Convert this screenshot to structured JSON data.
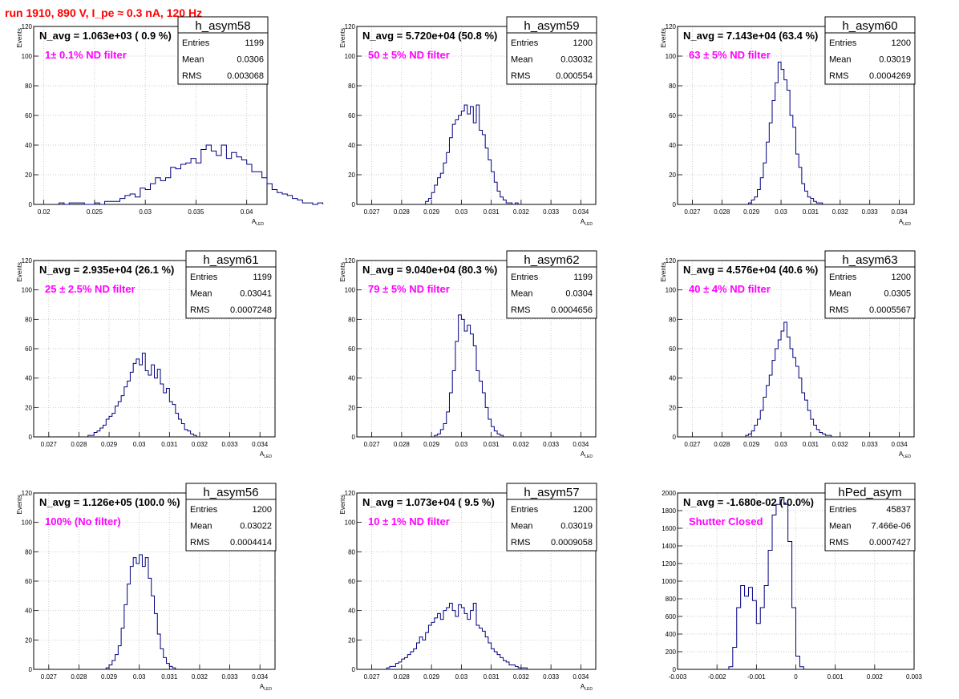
{
  "page_title": "run 1910,   890 V, I_pe ≈ 0.3 nA, 120 Hz",
  "colors": {
    "title": "#ff0000",
    "annotation": "#ff00ff",
    "hist": "#000080",
    "grid": "#d0d0d0"
  },
  "chart_data": [
    {
      "type": "histogram",
      "name": "h_asym58",
      "navg": "N_avg = 1.063e+03 ( 0.9 %)",
      "note": "1± 0.1% ND filter",
      "stats": [
        [
          "Entries",
          "1199"
        ],
        [
          "Mean",
          "0.0306"
        ],
        [
          "RMS",
          "0.003068"
        ]
      ],
      "xlabel": "A",
      "xlabel_sub": "LED",
      "ylabel": "Events",
      "xlim": [
        0.019,
        0.042
      ],
      "ylim": [
        0,
        120
      ],
      "xticks": [
        0.02,
        0.025,
        0.03,
        0.035,
        0.04
      ],
      "xtick_labels": [
        "0.02",
        "0.025",
        "0.03",
        "0.035",
        "0.04"
      ],
      "yticks": [
        0,
        20,
        40,
        60,
        80,
        100,
        120
      ],
      "ytick_labels": [
        "0",
        "20",
        "40",
        "60",
        "80",
        "100",
        "120"
      ],
      "bins": {
        "start": 0.0215,
        "width": 0.0005,
        "counts": [
          1,
          0,
          1,
          1,
          1,
          0,
          0,
          1,
          0,
          2,
          2,
          2,
          4,
          6,
          7,
          5,
          11,
          10,
          14,
          18,
          16,
          18,
          25,
          24,
          27,
          28,
          31,
          28,
          37,
          40,
          36,
          33,
          40,
          31,
          35,
          32,
          30,
          27,
          22,
          22,
          18,
          14,
          10,
          8,
          7,
          6,
          4,
          3,
          1,
          1,
          0,
          1
        ]
      }
    },
    {
      "type": "histogram",
      "name": "h_asym59",
      "navg": "N_avg = 5.720e+04 (50.8 %)",
      "note": "50 ± 5% ND filter",
      "stats": [
        [
          "Entries",
          "1200"
        ],
        [
          "Mean",
          "0.03032"
        ],
        [
          "RMS",
          "0.000554"
        ]
      ],
      "xlabel": "A",
      "xlabel_sub": "LED",
      "ylabel": "Events",
      "xlim": [
        0.0265,
        0.0345
      ],
      "ylim": [
        0,
        120
      ],
      "xticks": [
        0.027,
        0.028,
        0.029,
        0.03,
        0.031,
        0.032,
        0.033,
        0.034
      ],
      "xtick_labels": [
        "0.027",
        "0.028",
        "0.029",
        "0.03",
        "0.031",
        "0.032",
        "0.033",
        "0.034"
      ],
      "yticks": [
        0,
        20,
        40,
        60,
        80,
        100,
        120
      ],
      "ytick_labels": [
        "0",
        "20",
        "40",
        "60",
        "80",
        "100",
        "120"
      ],
      "bins": {
        "start": 0.0288,
        "width": 0.0001,
        "counts": [
          2,
          4,
          8,
          13,
          18,
          21,
          28,
          35,
          45,
          54,
          57,
          60,
          63,
          67,
          61,
          66,
          55,
          67,
          50,
          47,
          38,
          30,
          22,
          15,
          9,
          5,
          3,
          1,
          1,
          0,
          1
        ]
      }
    },
    {
      "type": "histogram",
      "name": "h_asym60",
      "navg": "N_avg = 7.143e+04 (63.4 %)",
      "note": "63 ± 5% ND filter",
      "stats": [
        [
          "Entries",
          "1200"
        ],
        [
          "Mean",
          "0.03019"
        ],
        [
          "RMS",
          "0.0004269"
        ]
      ],
      "xlabel": "A",
      "xlabel_sub": "LED",
      "ylabel": "Events",
      "xlim": [
        0.0265,
        0.0345
      ],
      "ylim": [
        0,
        120
      ],
      "xticks": [
        0.027,
        0.028,
        0.029,
        0.03,
        0.031,
        0.032,
        0.033,
        0.034
      ],
      "xtick_labels": [
        "0.027",
        "0.028",
        "0.029",
        "0.03",
        "0.031",
        "0.032",
        "0.033",
        "0.034"
      ],
      "yticks": [
        0,
        20,
        40,
        60,
        80,
        100,
        120
      ],
      "ytick_labels": [
        "0",
        "20",
        "40",
        "60",
        "80",
        "100",
        "120"
      ],
      "bins": {
        "start": 0.0289,
        "width": 0.0001,
        "counts": [
          1,
          3,
          5,
          10,
          18,
          28,
          42,
          55,
          70,
          82,
          96,
          91,
          84,
          77,
          60,
          52,
          34,
          25,
          14,
          9,
          5,
          4,
          2,
          1,
          1
        ]
      }
    },
    {
      "type": "histogram",
      "name": "h_asym61",
      "navg": "N_avg = 2.935e+04 (26.1 %)",
      "note": "25 ± 2.5% ND filter",
      "stats": [
        [
          "Entries",
          "1199"
        ],
        [
          "Mean",
          "0.03041"
        ],
        [
          "RMS",
          "0.0007248"
        ]
      ],
      "xlabel": "A",
      "xlabel_sub": "LED",
      "ylabel": "Events",
      "xlim": [
        0.0265,
        0.0345
      ],
      "ylim": [
        0,
        120
      ],
      "xticks": [
        0.027,
        0.028,
        0.029,
        0.03,
        0.031,
        0.032,
        0.033,
        0.034
      ],
      "xtick_labels": [
        "0.027",
        "0.028",
        "0.029",
        "0.03",
        "0.031",
        "0.032",
        "0.033",
        "0.034"
      ],
      "yticks": [
        0,
        20,
        40,
        60,
        80,
        100,
        120
      ],
      "ytick_labels": [
        "0",
        "20",
        "40",
        "60",
        "80",
        "100",
        "120"
      ],
      "bins": {
        "start": 0.0283,
        "width": 0.0001,
        "counts": [
          1,
          1,
          3,
          4,
          6,
          8,
          12,
          14,
          16,
          21,
          24,
          28,
          34,
          38,
          44,
          50,
          53,
          49,
          57,
          45,
          42,
          49,
          40,
          46,
          36,
          30,
          33,
          24,
          22,
          16,
          12,
          9,
          5,
          4,
          2,
          1
        ]
      }
    },
    {
      "type": "histogram",
      "name": "h_asym62",
      "navg": "N_avg = 9.040e+04 (80.3 %)",
      "note": "79 ± 5% ND filter",
      "stats": [
        [
          "Entries",
          "1199"
        ],
        [
          "Mean",
          "0.0304"
        ],
        [
          "RMS",
          "0.0004656"
        ]
      ],
      "xlabel": "A",
      "xlabel_sub": "LED",
      "ylabel": "Events",
      "xlim": [
        0.0265,
        0.0345
      ],
      "ylim": [
        0,
        120
      ],
      "xticks": [
        0.027,
        0.028,
        0.029,
        0.03,
        0.031,
        0.032,
        0.033,
        0.034
      ],
      "xtick_labels": [
        "0.027",
        "0.028",
        "0.029",
        "0.03",
        "0.031",
        "0.032",
        "0.033",
        "0.034"
      ],
      "yticks": [
        0,
        20,
        40,
        60,
        80,
        100,
        120
      ],
      "ytick_labels": [
        "0",
        "20",
        "40",
        "60",
        "80",
        "100",
        "120"
      ],
      "bins": {
        "start": 0.0291,
        "width": 0.0001,
        "counts": [
          1,
          2,
          5,
          9,
          17,
          30,
          45,
          65,
          83,
          80,
          72,
          76,
          70,
          62,
          45,
          38,
          30,
          20,
          12,
          7,
          4,
          2,
          1
        ]
      }
    },
    {
      "type": "histogram",
      "name": "h_asym63",
      "navg": "N_avg = 4.576e+04 (40.6 %)",
      "note": "40 ± 4% ND filter",
      "stats": [
        [
          "Entries",
          "1200"
        ],
        [
          "Mean",
          "0.0305"
        ],
        [
          "RMS",
          "0.0005567"
        ]
      ],
      "xlabel": "A",
      "xlabel_sub": "LED",
      "ylabel": "Events",
      "xlim": [
        0.0265,
        0.0345
      ],
      "ylim": [
        0,
        120
      ],
      "xticks": [
        0.027,
        0.028,
        0.029,
        0.03,
        0.031,
        0.032,
        0.033,
        0.034
      ],
      "xtick_labels": [
        "0.027",
        "0.028",
        "0.029",
        "0.03",
        "0.031",
        "0.032",
        "0.033",
        "0.034"
      ],
      "yticks": [
        0,
        20,
        40,
        60,
        80,
        100,
        120
      ],
      "ytick_labels": [
        "0",
        "20",
        "40",
        "60",
        "80",
        "100",
        "120"
      ],
      "bins": {
        "start": 0.0288,
        "width": 0.0001,
        "counts": [
          1,
          2,
          4,
          8,
          12,
          18,
          27,
          35,
          42,
          52,
          60,
          66,
          72,
          78,
          68,
          60,
          54,
          48,
          40,
          30,
          25,
          18,
          12,
          8,
          5,
          3,
          2,
          1,
          1
        ]
      }
    },
    {
      "type": "histogram",
      "name": "h_asym56",
      "navg": "N_avg = 1.126e+05 (100.0 %)",
      "note": "100% (No filter)",
      "stats": [
        [
          "Entries",
          "1200"
        ],
        [
          "Mean",
          "0.03022"
        ],
        [
          "RMS",
          "0.0004414"
        ]
      ],
      "xlabel": "A",
      "xlabel_sub": "LED",
      "ylabel": "Events",
      "xlim": [
        0.0265,
        0.0345
      ],
      "ylim": [
        0,
        120
      ],
      "xticks": [
        0.027,
        0.028,
        0.029,
        0.03,
        0.031,
        0.032,
        0.033,
        0.034
      ],
      "xtick_labels": [
        "0.027",
        "0.028",
        "0.029",
        "0.03",
        "0.031",
        "0.032",
        "0.033",
        "0.034"
      ],
      "yticks": [
        0,
        20,
        40,
        60,
        80,
        100,
        120
      ],
      "ytick_labels": [
        "0",
        "20",
        "40",
        "60",
        "80",
        "100",
        "120"
      ],
      "bins": {
        "start": 0.0289,
        "width": 0.0001,
        "counts": [
          1,
          3,
          6,
          10,
          16,
          28,
          44,
          58,
          70,
          76,
          72,
          78,
          70,
          76,
          62,
          50,
          38,
          24,
          14,
          8,
          4,
          2,
          1
        ]
      }
    },
    {
      "type": "histogram",
      "name": "h_asym57",
      "navg": "N_avg = 1.073e+04 ( 9.5 %)",
      "note": "10 ± 1% ND filter",
      "stats": [
        [
          "Entries",
          "1200"
        ],
        [
          "Mean",
          "0.03019"
        ],
        [
          "RMS",
          "0.0009058"
        ]
      ],
      "xlabel": "A",
      "xlabel_sub": "LED",
      "ylabel": "Events",
      "xlim": [
        0.0265,
        0.0345
      ],
      "ylim": [
        0,
        120
      ],
      "xticks": [
        0.027,
        0.028,
        0.029,
        0.03,
        0.031,
        0.032,
        0.033,
        0.034
      ],
      "xtick_labels": [
        "0.027",
        "0.028",
        "0.029",
        "0.03",
        "0.031",
        "0.032",
        "0.033",
        "0.034"
      ],
      "yticks": [
        0,
        20,
        40,
        60,
        80,
        100,
        120
      ],
      "ytick_labels": [
        "0",
        "20",
        "40",
        "60",
        "80",
        "100",
        "120"
      ],
      "bins": {
        "start": 0.0275,
        "width": 0.0001,
        "counts": [
          1,
          2,
          2,
          4,
          5,
          7,
          8,
          10,
          12,
          14,
          18,
          22,
          20,
          25,
          30,
          32,
          35,
          38,
          34,
          40,
          42,
          45,
          40,
          36,
          44,
          42,
          38,
          34,
          40,
          45,
          30,
          28,
          26,
          22,
          18,
          14,
          12,
          10,
          8,
          6,
          5,
          3,
          3,
          2,
          1,
          1,
          1
        ]
      }
    },
    {
      "type": "histogram",
      "name": "hPed_asym",
      "navg": "N_avg = -1.680e-02 (-0.0%)",
      "note": "Shutter Closed",
      "stats": [
        [
          "Entries",
          "45837"
        ],
        [
          "Mean",
          "7.466e-06"
        ],
        [
          "RMS",
          "0.0007427"
        ]
      ],
      "xlabel": "",
      "xlabel_sub": "",
      "ylabel": "",
      "xlim": [
        -0.003,
        0.003
      ],
      "ylim": [
        0,
        2000
      ],
      "xticks": [
        -0.003,
        -0.002,
        -0.001,
        0,
        0.001,
        0.002,
        0.003
      ],
      "xtick_labels": [
        "-0.003",
        "-0.002",
        "-0.001",
        "0",
        "0.001",
        "0.002",
        "0.003"
      ],
      "yticks": [
        0,
        200,
        400,
        600,
        800,
        1000,
        1200,
        1400,
        1600,
        1800,
        2000
      ],
      "ytick_labels": [
        "0",
        "200",
        "400",
        "600",
        "800",
        "1000",
        "1200",
        "1400",
        "1600",
        "1800",
        "2000"
      ],
      "bins": {
        "start": -0.0017,
        "width": 0.0001,
        "counts": [
          30,
          250,
          700,
          950,
          830,
          930,
          780,
          520,
          700,
          950,
          1350,
          1750,
          1870,
          1950,
          1870,
          1450,
          700,
          150,
          30
        ]
      }
    }
  ]
}
